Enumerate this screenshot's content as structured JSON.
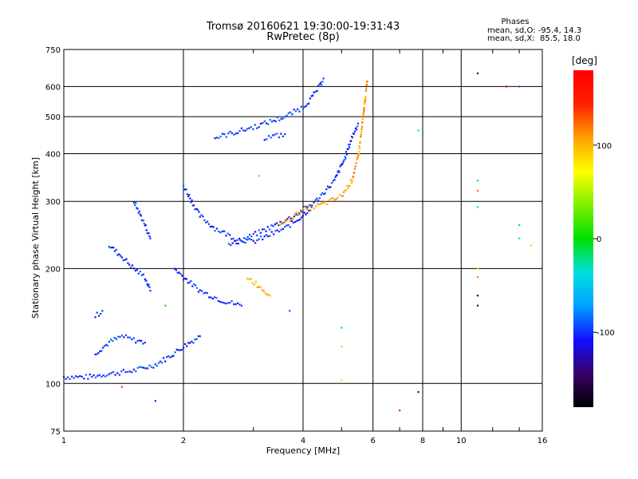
{
  "chart_data": {
    "type": "scatter",
    "title": "Tromsø 20160621 19:30:00-19:31:43",
    "subtitle": "RwPretec (8p)",
    "xlabel": "Frequency [MHz]",
    "ylabel": "Stationary phase Virtual Height [km]",
    "x_scale": "log",
    "y_scale": "log",
    "xlim": [
      1,
      16
    ],
    "ylim": [
      75,
      750
    ],
    "x_ticks": [
      "1",
      "2",
      "4",
      "6",
      "8",
      "10",
      "16"
    ],
    "x_tick_values": [
      1,
      2,
      4,
      6,
      8,
      10,
      16
    ],
    "y_ticks": [
      "75",
      "100",
      "200",
      "300",
      "400",
      "500",
      "600",
      "750"
    ],
    "y_tick_values": [
      75,
      100,
      200,
      300,
      400,
      500,
      600,
      750
    ],
    "grid": true,
    "phase_stats": {
      "heading": "Phases",
      "line1": "mean, sd,O: -95.4, 14.3",
      "line2": "mean, sd,X:  85.5, 18.0"
    },
    "colorbar": {
      "label": "[deg]",
      "range": [
        -180,
        180
      ],
      "ticks": [
        "100",
        "0",
        "-100"
      ],
      "tick_values": [
        100,
        0,
        -100
      ],
      "colors": [
        "#000000",
        "#3a006b",
        "#1010ff",
        "#00a0ff",
        "#00e0e0",
        "#00e000",
        "#80f000",
        "#ffff00",
        "#ffa000",
        "#ff2000",
        "#ff0000"
      ]
    },
    "traces": [
      {
        "mode": "O",
        "phase": -100,
        "points": [
          [
            1.0,
            104
          ],
          [
            1.15,
            104
          ],
          [
            1.3,
            106
          ],
          [
            1.5,
            108
          ],
          [
            1.7,
            112
          ],
          [
            1.85,
            118
          ],
          [
            2.0,
            125
          ],
          [
            2.2,
            133
          ]
        ]
      },
      {
        "mode": "O",
        "phase": -100,
        "points": [
          [
            1.2,
            120
          ],
          [
            1.3,
            128
          ],
          [
            1.4,
            133
          ],
          [
            1.5,
            130
          ],
          [
            1.6,
            128
          ]
        ]
      },
      {
        "mode": "O",
        "phase": -100,
        "points": [
          [
            1.2,
            150
          ],
          [
            1.25,
            155
          ]
        ]
      },
      {
        "mode": "O",
        "phase": -100,
        "points": [
          [
            1.3,
            230
          ],
          [
            1.4,
            215
          ],
          [
            1.5,
            200
          ],
          [
            1.6,
            190
          ],
          [
            1.65,
            175
          ]
        ]
      },
      {
        "mode": "O",
        "phase": -100,
        "points": [
          [
            1.5,
            300
          ],
          [
            1.55,
            280
          ],
          [
            1.6,
            260
          ],
          [
            1.65,
            240
          ]
        ]
      },
      {
        "mode": "O",
        "phase": -100,
        "points": [
          [
            1.9,
            200
          ],
          [
            2.0,
            190
          ],
          [
            2.2,
            175
          ],
          [
            2.5,
            165
          ],
          [
            2.8,
            160
          ]
        ]
      },
      {
        "mode": "O",
        "phase": -100,
        "points": [
          [
            2.0,
            330
          ],
          [
            2.1,
            300
          ],
          [
            2.2,
            275
          ],
          [
            2.4,
            255
          ],
          [
            2.7,
            240
          ],
          [
            3.0,
            235
          ],
          [
            3.3,
            245
          ],
          [
            3.6,
            255
          ],
          [
            3.9,
            270
          ],
          [
            4.2,
            290
          ]
        ]
      },
      {
        "mode": "O",
        "phase": -100,
        "points": [
          [
            2.6,
            230
          ],
          [
            3.0,
            245
          ],
          [
            3.4,
            260
          ],
          [
            3.8,
            275
          ],
          [
            4.3,
            300
          ],
          [
            4.8,
            340
          ],
          [
            5.1,
            390
          ],
          [
            5.3,
            440
          ],
          [
            5.5,
            480
          ]
        ]
      },
      {
        "mode": "O",
        "phase": -100,
        "points": [
          [
            2.4,
            440
          ],
          [
            2.8,
            460
          ],
          [
            3.2,
            480
          ],
          [
            3.6,
            500
          ],
          [
            4.0,
            530
          ],
          [
            4.2,
            560
          ],
          [
            4.4,
            600
          ],
          [
            4.5,
            630
          ]
        ]
      },
      {
        "mode": "O",
        "phase": -100,
        "points": [
          [
            3.2,
            440
          ],
          [
            3.4,
            445
          ],
          [
            3.6,
            450
          ]
        ]
      },
      {
        "mode": "X",
        "phase": 110,
        "points": [
          [
            3.5,
            260
          ],
          [
            4.0,
            285
          ],
          [
            4.5,
            295
          ],
          [
            5.0,
            310
          ],
          [
            5.3,
            340
          ],
          [
            5.5,
            390
          ],
          [
            5.6,
            450
          ],
          [
            5.7,
            530
          ],
          [
            5.8,
            620
          ]
        ]
      },
      {
        "mode": "X",
        "phase": 100,
        "points": [
          [
            2.9,
            190
          ],
          [
            3.1,
            180
          ],
          [
            3.3,
            170
          ]
        ]
      }
    ],
    "scatter_points": [
      {
        "x": 11,
        "y": 650,
        "phase": -130
      },
      {
        "x": 13,
        "y": 600,
        "phase": 175
      },
      {
        "x": 14,
        "y": 600,
        "phase": -90
      },
      {
        "x": 11,
        "y": 340,
        "phase": -20
      },
      {
        "x": 11,
        "y": 320,
        "phase": 120
      },
      {
        "x": 11,
        "y": 290,
        "phase": -40
      },
      {
        "x": 14,
        "y": 260,
        "phase": -10
      },
      {
        "x": 14,
        "y": 240,
        "phase": -30
      },
      {
        "x": 15,
        "y": 230,
        "phase": 90
      },
      {
        "x": 11,
        "y": 200,
        "phase": 90
      },
      {
        "x": 11,
        "y": 190,
        "phase": 120
      },
      {
        "x": 11,
        "y": 170,
        "phase": -160
      },
      {
        "x": 11,
        "y": 160,
        "phase": -140
      },
      {
        "x": 7.8,
        "y": 460,
        "phase": -30
      },
      {
        "x": 7.8,
        "y": 95,
        "phase": -130
      },
      {
        "x": 7.0,
        "y": 85,
        "phase": 150
      },
      {
        "x": 5.0,
        "y": 102,
        "phase": 60
      },
      {
        "x": 5.0,
        "y": 140,
        "phase": -20
      },
      {
        "x": 5.0,
        "y": 125,
        "phase": 50
      },
      {
        "x": 3.7,
        "y": 155,
        "phase": -90
      },
      {
        "x": 1.7,
        "y": 90,
        "phase": -100
      },
      {
        "x": 1.4,
        "y": 98,
        "phase": 140
      },
      {
        "x": 1.8,
        "y": 160,
        "phase": 10
      },
      {
        "x": 3.1,
        "y": 350,
        "phase": 30
      }
    ]
  }
}
